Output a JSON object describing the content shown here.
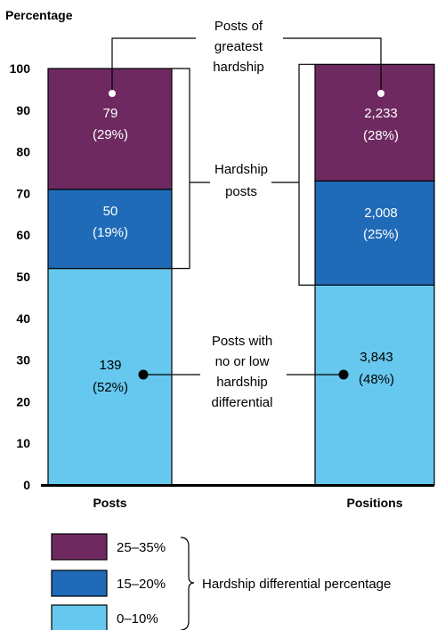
{
  "chart_data": {
    "type": "bar",
    "stacked": true,
    "ylabel": "Percentage",
    "ylim": [
      0,
      100
    ],
    "yticks": [
      0,
      10,
      20,
      30,
      40,
      50,
      60,
      70,
      80,
      90,
      100
    ],
    "categories": [
      "Posts",
      "Positions"
    ],
    "series": [
      {
        "name": "0–10%",
        "color": "#66c8ee",
        "values": [
          52,
          48
        ],
        "labels": [
          "139",
          "3,843"
        ],
        "pct_labels": [
          "(52%)",
          "(48%)"
        ]
      },
      {
        "name": "15–20%",
        "color": "#1f6bb8",
        "values": [
          19,
          25
        ],
        "labels": [
          "50",
          "2,008"
        ],
        "pct_labels": [
          "(19%)",
          "(25%)"
        ]
      },
      {
        "name": "25–35%",
        "color": "#6e2a60",
        "values": [
          29,
          28
        ],
        "labels": [
          "79",
          "2,233"
        ],
        "pct_labels": [
          "(29%)",
          "(28%)"
        ]
      }
    ],
    "annotations": {
      "greatest": [
        "Posts of",
        "greatest",
        "hardship"
      ],
      "hardship": [
        "Hardship",
        "posts"
      ],
      "low": [
        "Posts with",
        "no or low",
        "hardship",
        "differential"
      ]
    },
    "legend": {
      "placement": "bottom",
      "title": "Hardship differential percentage",
      "items": [
        "25–35%",
        "15–20%",
        "0–10%"
      ]
    }
  }
}
